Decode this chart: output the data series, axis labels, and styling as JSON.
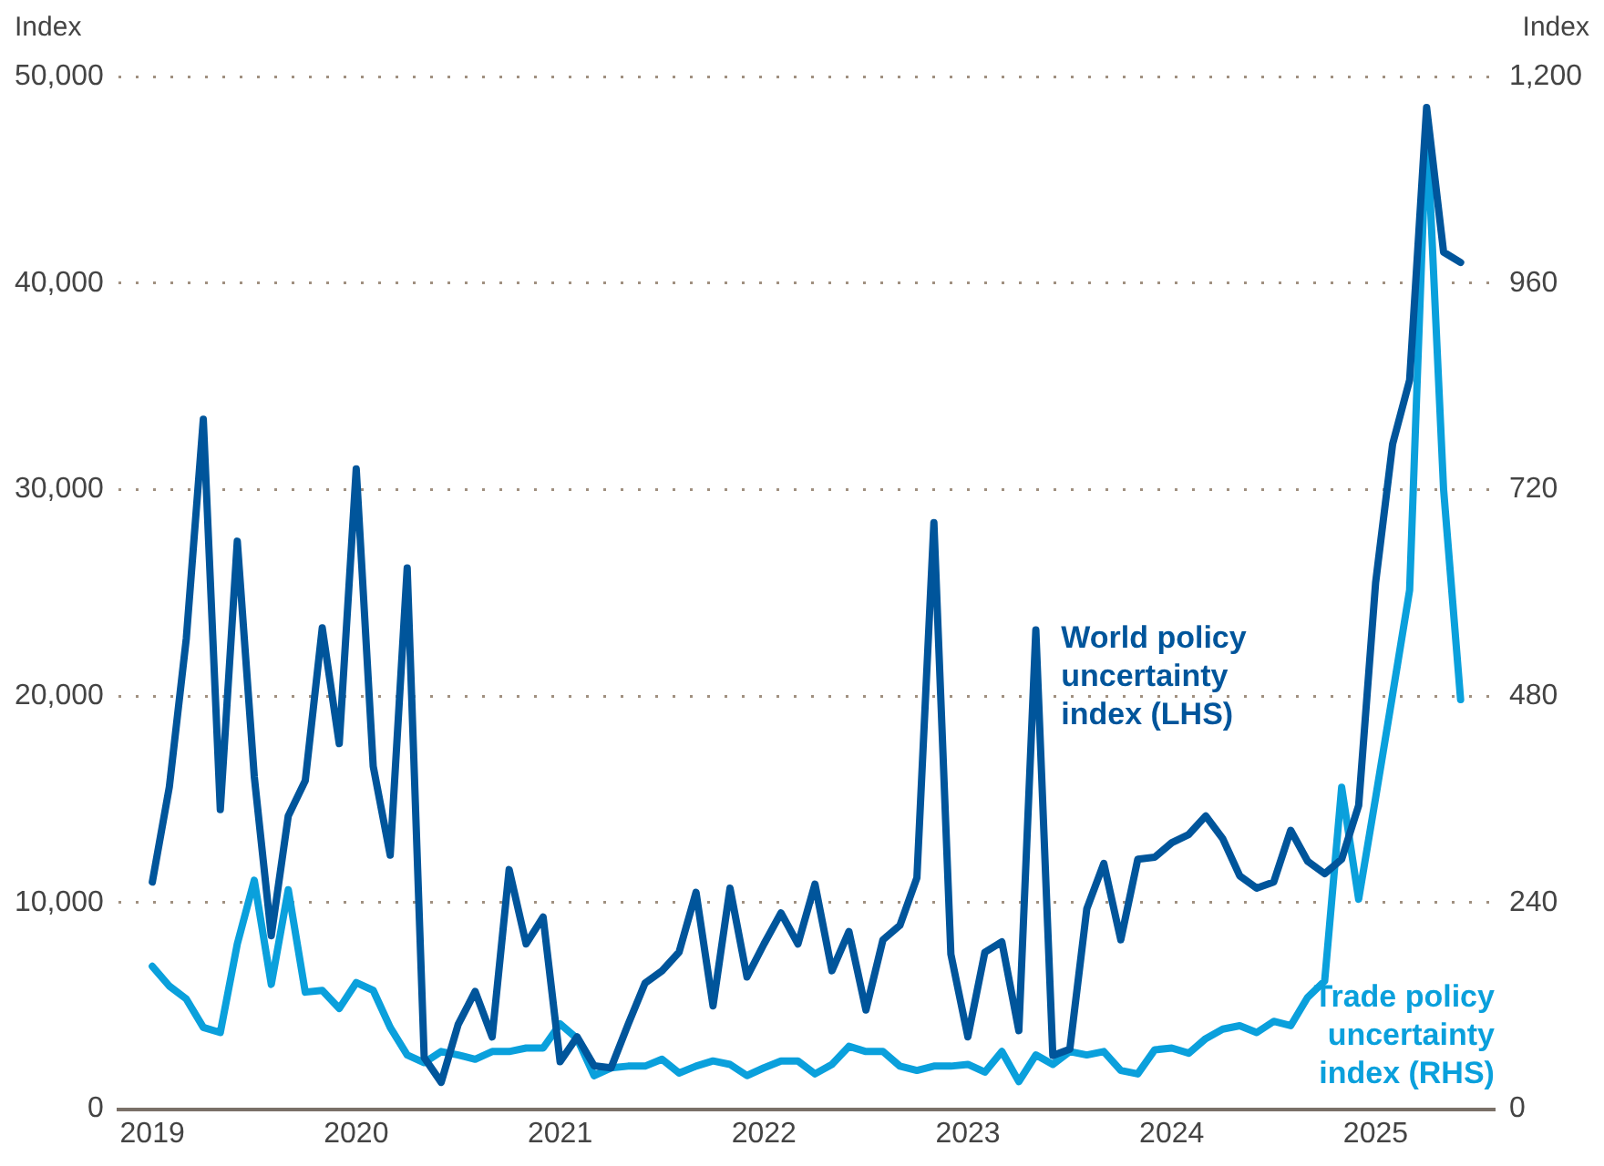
{
  "chart_data": {
    "type": "line",
    "ylabel": "Index",
    "y2label": "Index",
    "x": [
      "2019-01",
      "2019-02",
      "2019-03",
      "2019-04",
      "2019-05",
      "2019-06",
      "2019-07",
      "2019-08",
      "2019-09",
      "2019-10",
      "2019-11",
      "2019-12",
      "2020-01",
      "2020-02",
      "2020-03",
      "2020-04",
      "2020-05",
      "2020-06",
      "2020-07",
      "2020-08",
      "2020-09",
      "2020-10",
      "2020-11",
      "2020-12",
      "2021-01",
      "2021-02",
      "2021-03",
      "2021-04",
      "2021-05",
      "2021-06",
      "2021-07",
      "2021-08",
      "2021-09",
      "2021-10",
      "2021-11",
      "2021-12",
      "2022-01",
      "2022-02",
      "2022-03",
      "2022-04",
      "2022-05",
      "2022-06",
      "2022-07",
      "2022-08",
      "2022-09",
      "2022-10",
      "2022-11",
      "2022-12",
      "2023-01",
      "2023-02",
      "2023-03",
      "2023-04",
      "2023-05",
      "2023-06",
      "2023-07",
      "2023-08",
      "2023-09",
      "2023-10",
      "2023-11",
      "2023-12",
      "2024-01",
      "2024-02",
      "2024-03",
      "2024-04",
      "2024-05",
      "2024-06",
      "2024-07",
      "2024-08",
      "2024-09",
      "2024-10",
      "2024-11",
      "2024-12",
      "2025-01",
      "2025-02",
      "2025-03",
      "2025-04",
      "2025-05",
      "2025-06"
    ],
    "series": [
      {
        "name": "World policy uncertainty index (LHS)",
        "color": "#00559b",
        "values": [
          11000,
          15600,
          22800,
          33400,
          14500,
          27500,
          16100,
          8400,
          14200,
          15900,
          23300,
          17700,
          31000,
          16600,
          12300,
          26200,
          2500,
          1300,
          4100,
          5700,
          3500,
          11600,
          8000,
          9300,
          2300,
          3500,
          2100,
          2000,
          4100,
          6100,
          6700,
          7600,
          10500,
          5000,
          10700,
          6400,
          8000,
          9500,
          8000,
          10900,
          6700,
          8600,
          4800,
          8200,
          8900,
          11200,
          28400,
          7500,
          3500,
          7600,
          8100,
          3800,
          23200,
          2600,
          2900,
          9700,
          11900,
          8200,
          12100,
          12200,
          12900,
          13300,
          14200,
          13100,
          11300,
          10700,
          11000,
          13500,
          12000,
          11400,
          12100,
          14700,
          25500,
          32200,
          35300,
          48500,
          41500,
          41000
        ]
      },
      {
        "name": "Trade policy uncertainty index (RHS)",
        "color": "#0aa0dc",
        "axis": "y2",
        "values": [
          166,
          143,
          128,
          95,
          89,
          192,
          266,
          145,
          255,
          136,
          138,
          117,
          147,
          138,
          95,
          63,
          54,
          67,
          63,
          58,
          67,
          67,
          71,
          71,
          99,
          82,
          39,
          48,
          50,
          50,
          58,
          42,
          50,
          56,
          52,
          39,
          48,
          56,
          56,
          41,
          52,
          73,
          67,
          67,
          50,
          45,
          50,
          50,
          52,
          43,
          67,
          32,
          63,
          52,
          67,
          63,
          67,
          45,
          41,
          69,
          71,
          65,
          82,
          93,
          97,
          89,
          102,
          97,
          130,
          149,
          374,
          244,
          362,
          482,
          603,
          1148,
          720,
          476
        ]
      }
    ],
    "xlim": [
      "2018-11",
      "2025-08"
    ],
    "xticks": [
      "2019",
      "2020",
      "2021",
      "2022",
      "2023",
      "2024",
      "2025"
    ],
    "ylim": [
      0,
      50000
    ],
    "yticks": [
      0,
      {
        "value": 10000,
        "label": "10,000"
      },
      {
        "value": 20000,
        "label": "20,000"
      },
      {
        "value": 30000,
        "label": "30,000"
      },
      {
        "value": 40000,
        "label": "40,000"
      },
      {
        "value": 50000,
        "label": "50,000"
      }
    ],
    "y2lim": [
      0,
      1200
    ],
    "y2ticks": [
      0,
      240,
      480,
      720,
      960,
      {
        "value": 1200,
        "label": "1,200"
      }
    ],
    "grid": "y",
    "legend": false,
    "marker": "none",
    "line_style": "solid"
  }
}
